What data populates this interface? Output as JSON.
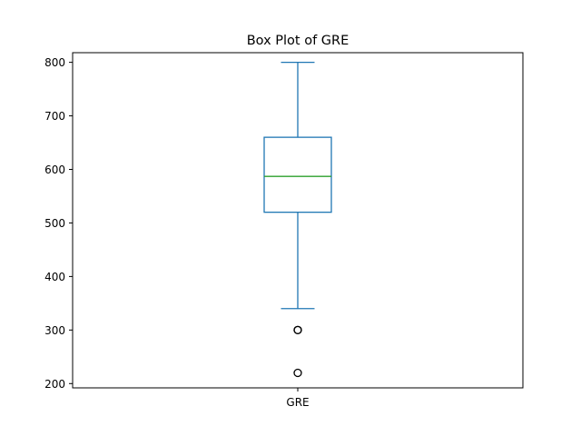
{
  "chart_data": {
    "type": "box",
    "title": "Box Plot of GRE",
    "categories": [
      "GRE"
    ],
    "series": [
      {
        "name": "GRE",
        "whisker_low": 340,
        "q1": 520,
        "median": 587,
        "q3": 660,
        "whisker_high": 800,
        "outliers": [
          300,
          300,
          220
        ]
      }
    ],
    "ylim": [
      192,
      818
    ],
    "yticks": [
      200,
      300,
      400,
      500,
      600,
      700,
      800
    ],
    "grid": false,
    "colors": {
      "box": "#1f77b4",
      "median": "#2ca02c",
      "outlier": "#000000",
      "axes": "#000000"
    }
  }
}
